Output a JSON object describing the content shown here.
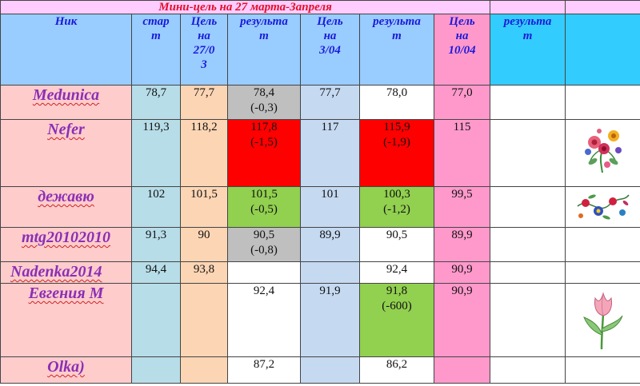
{
  "title": "Мини-цель на 27 марта-Запреля",
  "headers": {
    "nick": "Ник",
    "start": "стар\nт",
    "goal_27_03": "Цель\nна\n27/0\n3",
    "result_1": "результа\nт",
    "goal_3_04": "Цель\nна\n3/04",
    "result_2": "результа\nт",
    "goal_10_04": "Цель\nна\n10/04",
    "result_3": "результа\nт"
  },
  "rows": [
    {
      "nick": "Meduniсa",
      "start": "78,7",
      "goal1": "77,7",
      "res1": "78,4\n(-0,3)",
      "goal3": "77,7",
      "res2": "78,0",
      "goal10": "77,0",
      "res3": ""
    },
    {
      "nick": "Nefer",
      "start": "119,3",
      "goal1": "118,2",
      "res1": "117,8\n(-1,5)",
      "goal3": "117",
      "res2": "115,9\n(-1,9)",
      "goal10": "115",
      "res3": ""
    },
    {
      "nick": "дежавю",
      "start": "102",
      "goal1": "101,5",
      "res1": "101,5\n(-0,5)",
      "goal3": "101",
      "res2": "100,3\n(-1,2)",
      "goal10": "99,5",
      "res3": ""
    },
    {
      "nick": "mtg20102010",
      "start": "91,3",
      "goal1": "90",
      "res1": "90,5\n(-0,8)",
      "goal3": "89,9",
      "res2": "90,5",
      "goal10": "89,9",
      "res3": ""
    },
    {
      "nick": "Nadenka2014",
      "start": "94,4",
      "goal1": "93,8",
      "res1": "",
      "goal3": "",
      "res2": "92,4",
      "goal10": "90,9",
      "res3": ""
    },
    {
      "nick": "Евгения М",
      "start": "",
      "goal1": "",
      "res1": "92,4",
      "goal3": "91,9",
      "res2": "91,8\n(-600)",
      "goal10": "90,9",
      "res3": ""
    },
    {
      "nick": "Olka)",
      "start": "",
      "goal1": "",
      "res1": "87,2",
      "goal3": "",
      "res2": "86,2",
      "goal10": "",
      "res3": ""
    }
  ],
  "colors": {
    "title_bg": "#ffccff",
    "title_text": "#e0102a",
    "header_text": "#1a1ad8",
    "nick_text": "#8b2fb4",
    "nick_bg": "#ffcccc",
    "gray": "#bfbfbf",
    "red": "#ff0000",
    "green": "#92d050"
  },
  "icons": [
    "flower-bouquet-icon",
    "flower-ornament-icon",
    "tulip-icon"
  ]
}
